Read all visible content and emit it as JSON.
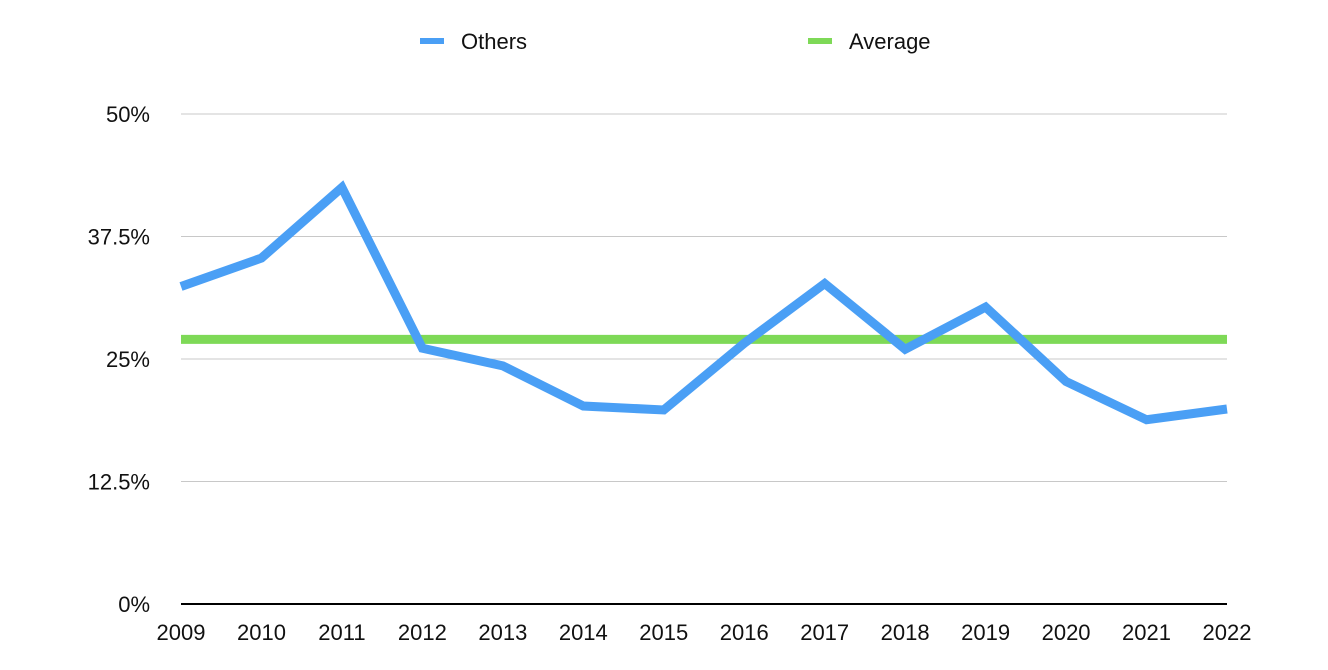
{
  "chart_data": {
    "type": "line",
    "title": "",
    "xlabel": "",
    "ylabel": "",
    "categories": [
      "2009",
      "2010",
      "2011",
      "2012",
      "2013",
      "2014",
      "2015",
      "2016",
      "2017",
      "2018",
      "2019",
      "2020",
      "2021",
      "2022"
    ],
    "series": [
      {
        "name": "Others",
        "color": "#4A9FF5",
        "values": [
          32.4,
          35.3,
          42.5,
          26.1,
          24.3,
          20.2,
          19.8,
          26.6,
          32.7,
          26.0,
          30.3,
          22.7,
          18.8,
          19.9
        ]
      },
      {
        "name": "Average",
        "color": "#7ED957",
        "values": [
          27.0,
          27.0,
          27.0,
          27.0,
          27.0,
          27.0,
          27.0,
          27.0,
          27.0,
          27.0,
          27.0,
          27.0,
          27.0,
          27.0
        ]
      }
    ],
    "ylim": [
      0,
      50
    ],
    "yticks": [
      0,
      12.5,
      25,
      37.5,
      50
    ],
    "ytick_labels": [
      "0%",
      "12.5%",
      "25%",
      "37.5%",
      "50%"
    ],
    "grid": true,
    "legend_position": "top-center"
  }
}
